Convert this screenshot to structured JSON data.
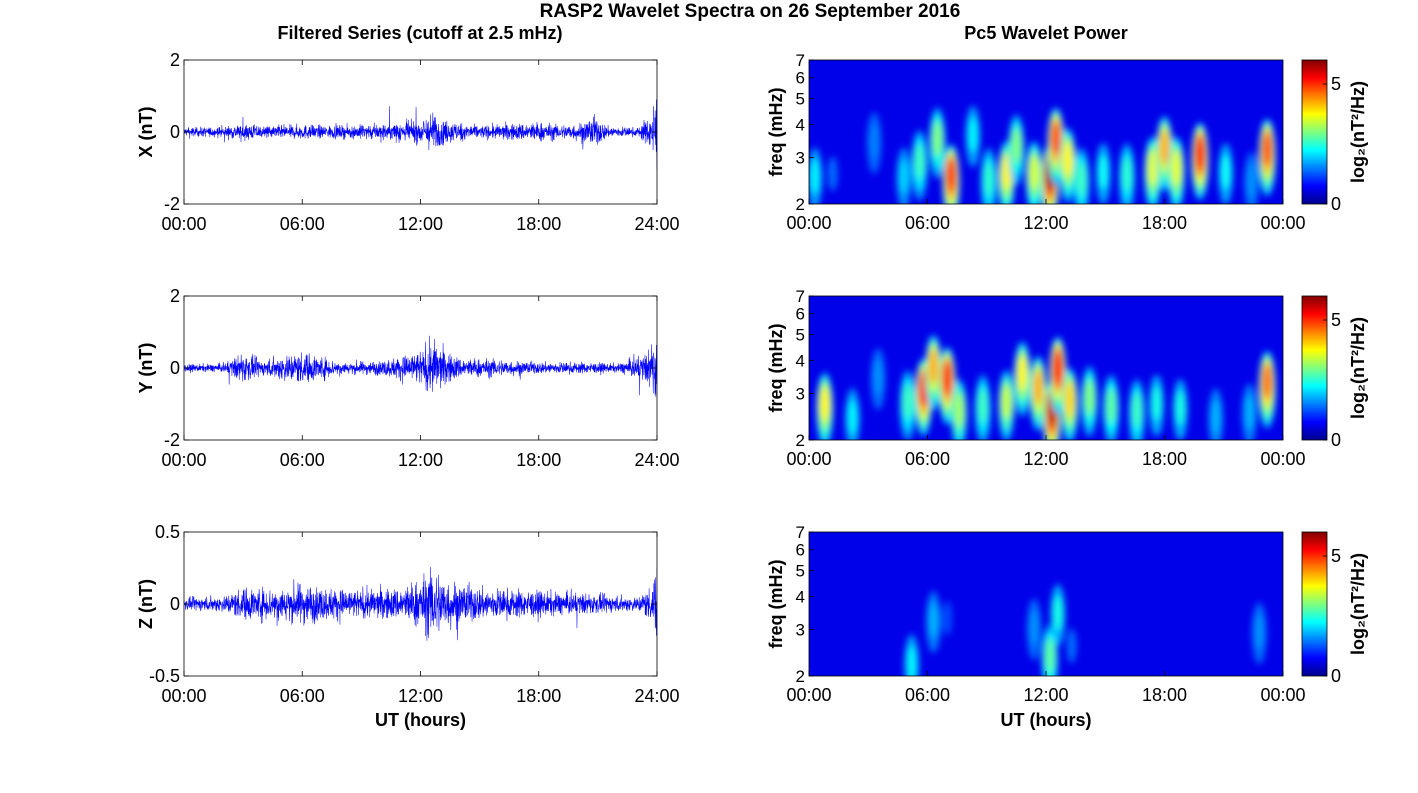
{
  "figure": {
    "title": "RASP2 Wavelet Spectra on 26 September 2016",
    "left_title": "Filtered Series (cutoff at 2.5 mHz)",
    "right_title": "Pc5 Wavelet Power"
  },
  "chart_data": [
    {
      "type": "line",
      "panel": "X",
      "xlabel": "",
      "ylabel": "X (nT)",
      "xlim": [
        0,
        24
      ],
      "ylim": [
        -2,
        2
      ],
      "xticks": [
        "00:00",
        "06:00",
        "12:00",
        "18:00",
        "24:00"
      ],
      "yticks": [
        "-2",
        "0",
        "2"
      ],
      "color": "#0000ff",
      "envelope": [
        [
          0,
          0.15
        ],
        [
          2,
          0.18
        ],
        [
          3,
          0.3
        ],
        [
          4,
          0.22
        ],
        [
          6,
          0.25
        ],
        [
          8,
          0.22
        ],
        [
          10,
          0.28
        ],
        [
          12,
          0.4
        ],
        [
          12.7,
          0.7
        ],
        [
          13,
          0.45
        ],
        [
          15,
          0.22
        ],
        [
          17,
          0.3
        ],
        [
          18,
          0.35
        ],
        [
          19,
          0.25
        ],
        [
          20,
          0.3
        ],
        [
          20.8,
          0.55
        ],
        [
          21.5,
          0.2
        ],
        [
          23,
          0.15
        ],
        [
          23.7,
          0.6
        ],
        [
          24,
          1.6
        ]
      ]
    },
    {
      "type": "line",
      "panel": "Y",
      "xlabel": "",
      "ylabel": "Y (nT)",
      "xlim": [
        0,
        24
      ],
      "ylim": [
        -2,
        2
      ],
      "xticks": [
        "00:00",
        "06:00",
        "12:00",
        "18:00",
        "24:00"
      ],
      "yticks": [
        "-2",
        "0",
        "2"
      ],
      "color": "#0000ff",
      "envelope": [
        [
          0,
          0.12
        ],
        [
          2,
          0.15
        ],
        [
          3,
          0.5
        ],
        [
          4,
          0.25
        ],
        [
          5,
          0.45
        ],
        [
          6,
          0.55
        ],
        [
          7,
          0.4
        ],
        [
          8,
          0.2
        ],
        [
          10,
          0.25
        ],
        [
          11,
          0.4
        ],
        [
          12,
          0.6
        ],
        [
          12.7,
          0.95
        ],
        [
          13.2,
          0.6
        ],
        [
          14,
          0.35
        ],
        [
          16,
          0.3
        ],
        [
          18,
          0.2
        ],
        [
          20,
          0.2
        ],
        [
          22,
          0.15
        ],
        [
          23.5,
          0.5
        ],
        [
          24,
          1.2
        ]
      ]
    },
    {
      "type": "line",
      "panel": "Z",
      "xlabel": "UT (hours)",
      "ylabel": "Z (nT)",
      "xlim": [
        0,
        24
      ],
      "ylim": [
        -0.5,
        0.5
      ],
      "xticks": [
        "00:00",
        "06:00",
        "12:00",
        "18:00",
        "24:00"
      ],
      "yticks": [
        "-0.5",
        "0",
        "0.5"
      ],
      "color": "#0000ff",
      "envelope": [
        [
          0,
          0.05
        ],
        [
          2,
          0.07
        ],
        [
          3,
          0.14
        ],
        [
          5,
          0.14
        ],
        [
          6,
          0.18
        ],
        [
          7,
          0.14
        ],
        [
          9,
          0.12
        ],
        [
          11,
          0.14
        ],
        [
          12,
          0.22
        ],
        [
          12.7,
          0.32
        ],
        [
          13.3,
          0.22
        ],
        [
          15,
          0.14
        ],
        [
          17,
          0.12
        ],
        [
          19,
          0.1
        ],
        [
          21,
          0.08
        ],
        [
          23,
          0.06
        ],
        [
          23.7,
          0.15
        ],
        [
          24,
          0.3
        ]
      ]
    },
    {
      "type": "heatmap",
      "panel": "X",
      "xlabel": "",
      "ylabel": "freq (mHz)",
      "xlim": [
        0,
        24
      ],
      "ylim": [
        2,
        7
      ],
      "yscale": "log",
      "xticks": [
        "00:00",
        "06:00",
        "12:00",
        "18:00",
        "00:00"
      ],
      "yticks": [
        "2",
        "3",
        "4",
        "5",
        "6",
        "7"
      ],
      "colorbar": {
        "label": "log₂(nT²/Hz)",
        "range": [
          0,
          6
        ],
        "ticks": [
          "0",
          "5"
        ]
      },
      "blobs": [
        [
          0.3,
          2.5,
          2.2
        ],
        [
          1.2,
          2.6,
          1.4
        ],
        [
          3.3,
          3.4,
          1.5
        ],
        [
          4.8,
          2.5,
          2.0
        ],
        [
          5.6,
          2.8,
          2.6
        ],
        [
          6.5,
          3.4,
          3.0
        ],
        [
          7.2,
          2.4,
          5.0
        ],
        [
          8.3,
          3.6,
          2.2
        ],
        [
          9.1,
          2.4,
          2.5
        ],
        [
          10.0,
          2.5,
          3.8
        ],
        [
          10.5,
          3.2,
          3.0
        ],
        [
          11.4,
          2.5,
          3.5
        ],
        [
          12.2,
          2.4,
          5.8
        ],
        [
          12.5,
          3.3,
          4.8
        ],
        [
          13.1,
          2.8,
          3.8
        ],
        [
          13.8,
          2.4,
          2.6
        ],
        [
          14.9,
          2.6,
          2.3
        ],
        [
          16.1,
          2.5,
          2.5
        ],
        [
          17.4,
          2.6,
          3.6
        ],
        [
          18.0,
          3.1,
          4.2
        ],
        [
          18.6,
          2.6,
          3.6
        ],
        [
          19.8,
          2.9,
          5.2
        ],
        [
          21.1,
          2.6,
          2.3
        ],
        [
          22.4,
          2.4,
          1.6
        ],
        [
          23.2,
          3.0,
          4.8
        ]
      ]
    },
    {
      "type": "heatmap",
      "panel": "Y",
      "xlabel": "",
      "ylabel": "freq (mHz)",
      "xlim": [
        0,
        24
      ],
      "ylim": [
        2,
        7
      ],
      "yscale": "log",
      "xticks": [
        "00:00",
        "06:00",
        "12:00",
        "18:00",
        "00:00"
      ],
      "yticks": [
        "2",
        "3",
        "4",
        "5",
        "6",
        "7"
      ],
      "colorbar": {
        "label": "log₂(nT²/Hz)",
        "range": [
          0,
          6
        ],
        "ticks": [
          "0",
          "5"
        ]
      },
      "blobs": [
        [
          0.8,
          2.6,
          3.8
        ],
        [
          2.2,
          2.4,
          2.2
        ],
        [
          3.5,
          3.4,
          1.6
        ],
        [
          5.0,
          2.7,
          2.6
        ],
        [
          5.8,
          2.9,
          5.0
        ],
        [
          6.3,
          3.6,
          4.2
        ],
        [
          7.0,
          3.2,
          5.0
        ],
        [
          7.6,
          2.5,
          3.2
        ],
        [
          8.8,
          2.6,
          2.6
        ],
        [
          10.0,
          2.7,
          3.4
        ],
        [
          10.8,
          3.4,
          3.8
        ],
        [
          11.6,
          3.0,
          4.2
        ],
        [
          12.3,
          2.4,
          5.6
        ],
        [
          12.6,
          3.5,
          5.2
        ],
        [
          13.2,
          2.7,
          4.0
        ],
        [
          14.2,
          2.8,
          3.0
        ],
        [
          15.3,
          2.6,
          2.8
        ],
        [
          16.6,
          2.5,
          2.6
        ],
        [
          17.6,
          2.7,
          2.4
        ],
        [
          18.8,
          2.6,
          2.4
        ],
        [
          20.6,
          2.4,
          1.8
        ],
        [
          22.3,
          2.5,
          1.8
        ],
        [
          23.2,
          3.1,
          4.6
        ]
      ]
    },
    {
      "type": "heatmap",
      "panel": "Z",
      "xlabel": "UT (hours)",
      "ylabel": "freq (mHz)",
      "xlim": [
        0,
        24
      ],
      "ylim": [
        2,
        7
      ],
      "yscale": "log",
      "xticks": [
        "00:00",
        "06:00",
        "12:00",
        "18:00",
        "00:00"
      ],
      "yticks": [
        "2",
        "3",
        "4",
        "5",
        "6",
        "7"
      ],
      "colorbar": {
        "label": "log₂(nT²/Hz)",
        "range": [
          0,
          6
        ],
        "ticks": [
          "0",
          "5"
        ]
      },
      "blobs": [
        [
          5.2,
          2.2,
          2.2
        ],
        [
          6.3,
          3.2,
          1.8
        ],
        [
          7.0,
          3.3,
          1.2
        ],
        [
          11.4,
          3.0,
          1.6
        ],
        [
          12.2,
          2.3,
          2.8
        ],
        [
          12.6,
          3.4,
          2.4
        ],
        [
          13.3,
          2.6,
          1.4
        ],
        [
          22.8,
          2.9,
          1.6
        ]
      ]
    }
  ]
}
